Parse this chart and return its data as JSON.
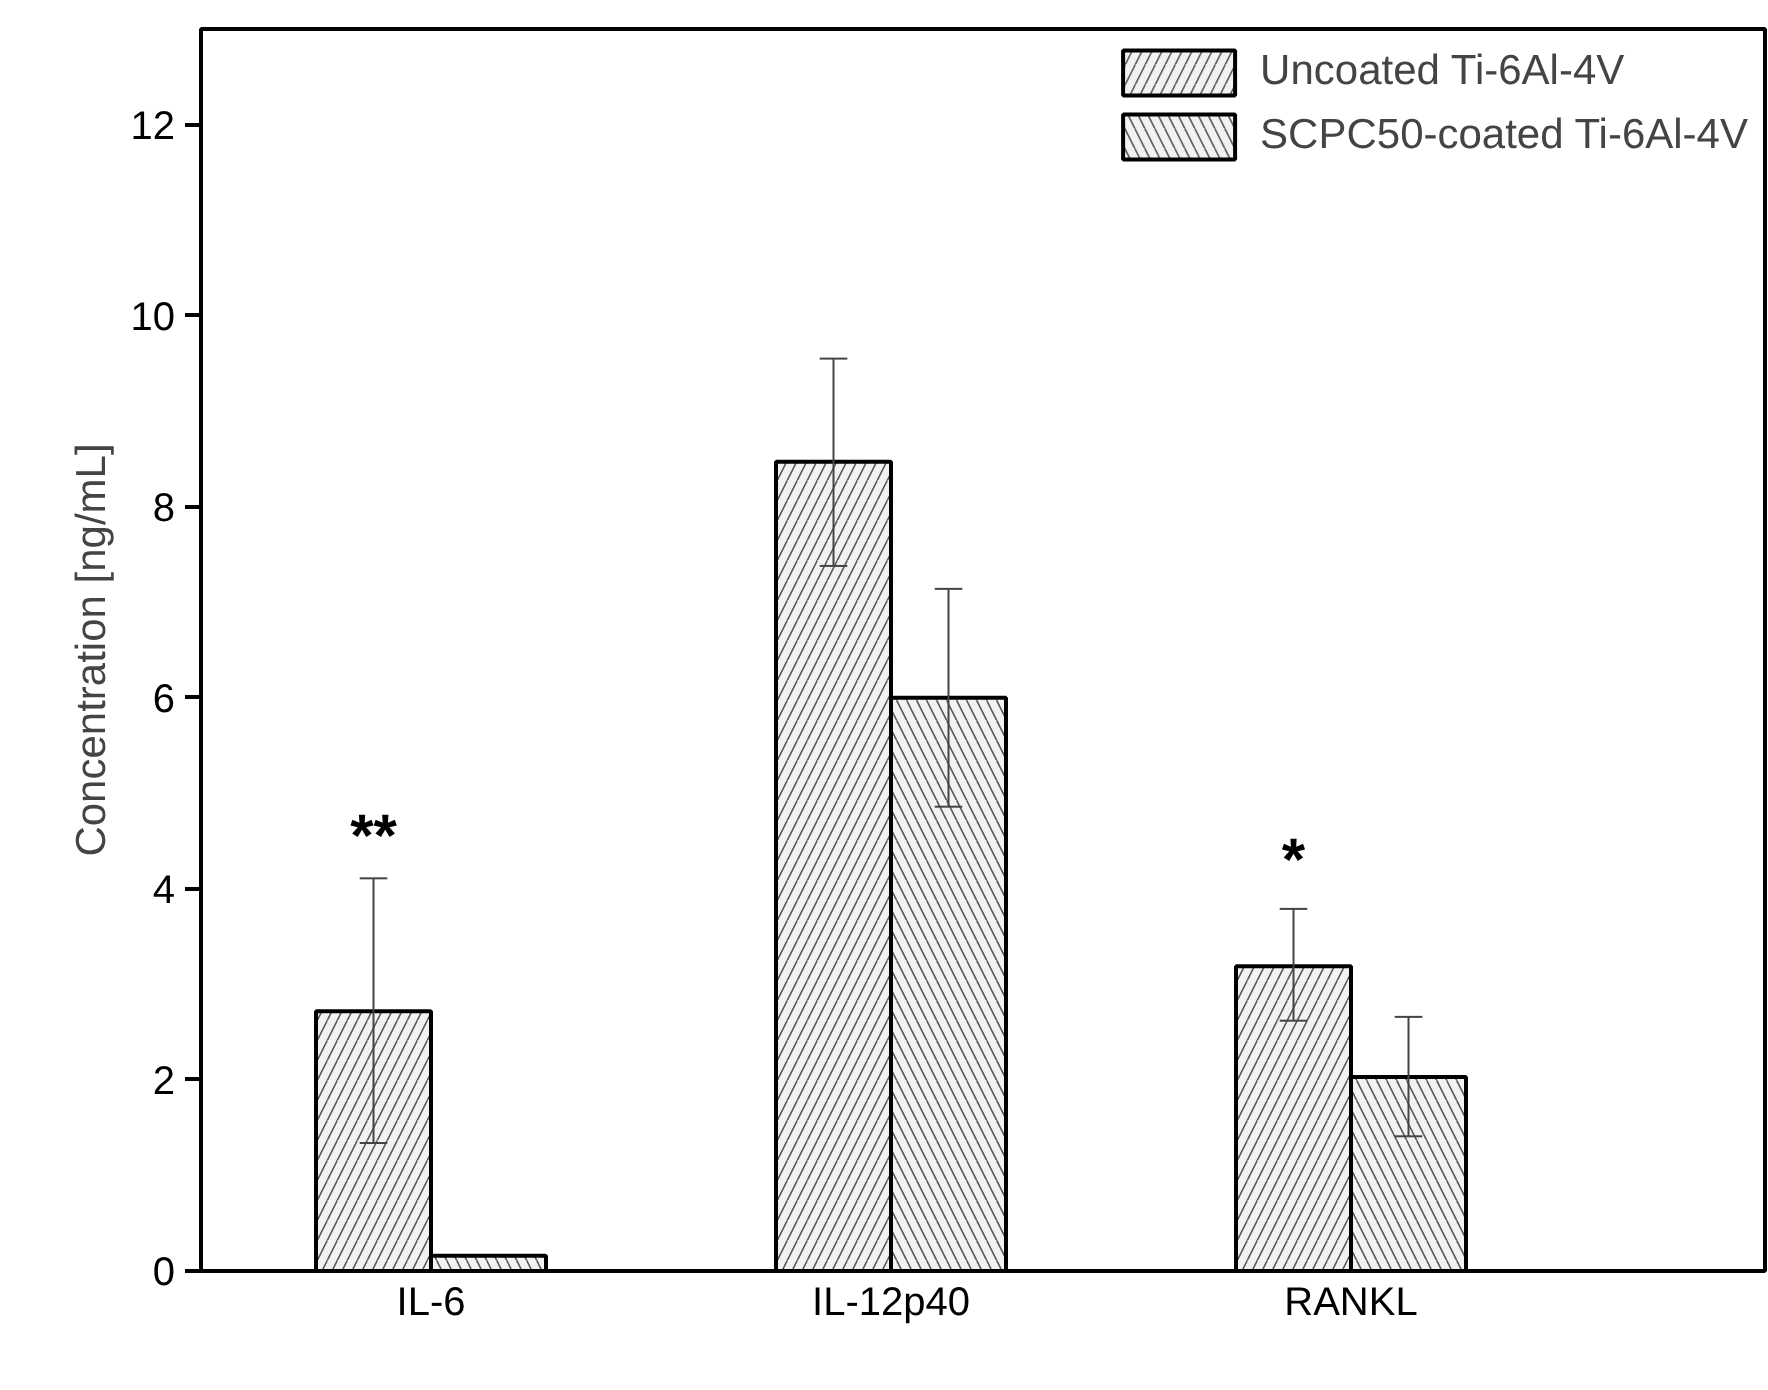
{
  "chart_data": {
    "type": "bar",
    "ylabel": "Concentration [ng/mL]",
    "categories": [
      "IL-6",
      "IL-12p40",
      "RANKL"
    ],
    "series": [
      {
        "name": "Uncoated Ti-6Al-4V",
        "color": "#f2f2f2",
        "values": [
          2.72,
          8.47,
          3.19
        ],
        "errors": [
          [
            1.34,
            4.11
          ],
          [
            7.38,
            9.55
          ],
          [
            2.62,
            3.79
          ]
        ]
      },
      {
        "name": "SCPC50-coated Ti-6Al-4V",
        "color": "#f2f2f2",
        "values": [
          0.16,
          6.0,
          2.03
        ],
        "errors": [
          null,
          [
            4.86,
            7.14
          ],
          [
            1.41,
            2.66
          ]
        ]
      }
    ],
    "ylim": [
      0,
      13
    ],
    "yticks": [
      0,
      2,
      4,
      6,
      8,
      10,
      12
    ],
    "annotations": [
      "**",
      "*"
    ],
    "legend": "top right",
    "grid": false
  }
}
